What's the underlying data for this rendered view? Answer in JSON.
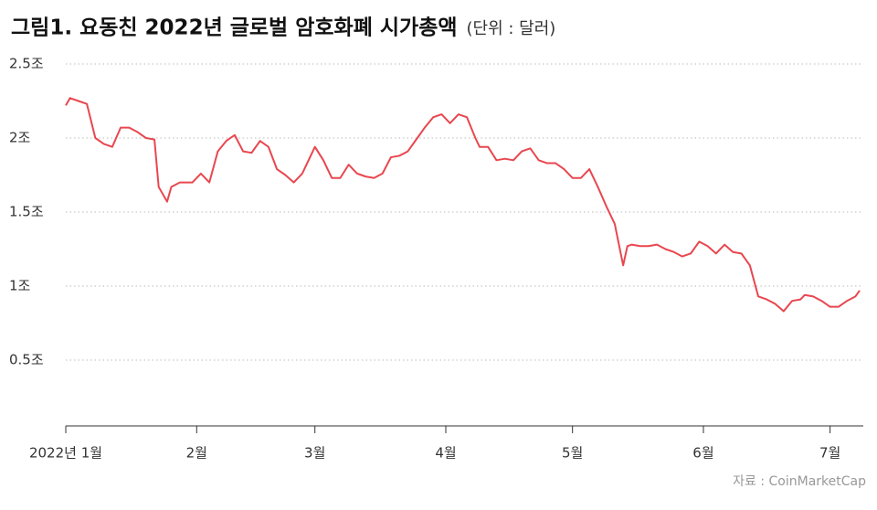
{
  "chart_data": {
    "type": "line",
    "title": "그림1. 요동친 2022년 글로벌 암호화폐 시가총액",
    "subtitle": "(단위 : 달러)",
    "source": "자료 : CoinMarketCap",
    "x": [
      0,
      1,
      3,
      5,
      7,
      9,
      11,
      13,
      15,
      17,
      19,
      21,
      22,
      23,
      24,
      25,
      27,
      30,
      32,
      34,
      36,
      38,
      40,
      42,
      44,
      46,
      48,
      50,
      52,
      54,
      56,
      57,
      59,
      61,
      63,
      65,
      67,
      69,
      71,
      73,
      75,
      77,
      79,
      81,
      83,
      85,
      87,
      89,
      91,
      93,
      95,
      97,
      98,
      100,
      102,
      104,
      106,
      108,
      110,
      112,
      114,
      116,
      118,
      120,
      122,
      124,
      126,
      128,
      130,
      132,
      133,
      134,
      136,
      138,
      140,
      142,
      144,
      146,
      148,
      150,
      152,
      154,
      156,
      158,
      160,
      162,
      164,
      166,
      168,
      170,
      172,
      174,
      175,
      177,
      179,
      181,
      183,
      185,
      187,
      188
    ],
    "series": [
      {
        "name": "시가총액",
        "color": "#e8474f",
        "values": [
          2.22,
          2.27,
          2.25,
          2.23,
          2.0,
          1.96,
          1.94,
          2.07,
          2.07,
          2.04,
          2.0,
          1.99,
          1.67,
          1.62,
          1.57,
          1.67,
          1.7,
          1.7,
          1.76,
          1.7,
          1.91,
          1.98,
          2.02,
          1.91,
          1.9,
          1.98,
          1.94,
          1.79,
          1.75,
          1.7,
          1.76,
          1.82,
          1.94,
          1.85,
          1.73,
          1.73,
          1.82,
          1.76,
          1.74,
          1.73,
          1.76,
          1.87,
          1.88,
          1.91,
          1.99,
          2.07,
          2.14,
          2.16,
          2.1,
          2.16,
          2.14,
          2.0,
          1.94,
          1.94,
          1.85,
          1.86,
          1.85,
          1.91,
          1.93,
          1.85,
          1.83,
          1.83,
          1.79,
          1.73,
          1.73,
          1.79,
          1.67,
          1.54,
          1.42,
          1.14,
          1.27,
          1.28,
          1.27,
          1.27,
          1.28,
          1.25,
          1.23,
          1.2,
          1.22,
          1.3,
          1.27,
          1.22,
          1.28,
          1.23,
          1.22,
          1.14,
          0.93,
          0.91,
          0.88,
          0.83,
          0.9,
          0.91,
          0.94,
          0.93,
          0.9,
          0.86,
          0.86,
          0.9,
          0.93,
          0.97
        ]
      }
    ],
    "xlim": [
      0,
      188
    ],
    "xticks": [
      {
        "value": 0,
        "label": "2022년 1월"
      },
      {
        "value": 31,
        "label": "2월"
      },
      {
        "value": 59,
        "label": "3월"
      },
      {
        "value": 90,
        "label": "4월"
      },
      {
        "value": 120,
        "label": "5월"
      },
      {
        "value": 151,
        "label": "6월"
      },
      {
        "value": 181,
        "label": "7월"
      }
    ],
    "ylim": [
      0.05,
      2.6
    ],
    "yticks": [
      {
        "value": 0.5,
        "label": "0.5조"
      },
      {
        "value": 1,
        "label": "1조"
      },
      {
        "value": 1.5,
        "label": "1.5조"
      },
      {
        "value": 2,
        "label": "2조"
      },
      {
        "value": 2.5,
        "label": "2.5조"
      }
    ],
    "grid": true
  }
}
